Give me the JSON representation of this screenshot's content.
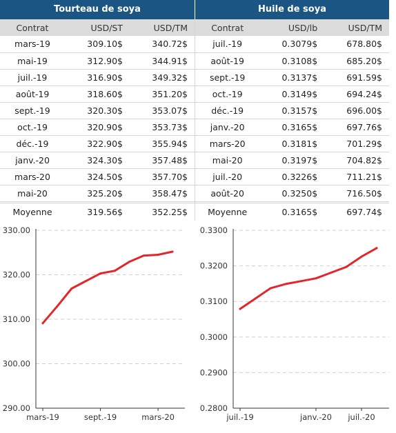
{
  "tables": [
    {
      "title": "Tourteau de soya",
      "columns": [
        "Contrat",
        "USD/ST",
        "USD/TM"
      ],
      "rows": [
        [
          "mars-19",
          "309.10$",
          "340.72$"
        ],
        [
          "mai-19",
          "312.90$",
          "344.91$"
        ],
        [
          "juil.-19",
          "316.90$",
          "349.32$"
        ],
        [
          "août-19",
          "318.60$",
          "351.20$"
        ],
        [
          "sept.-19",
          "320.30$",
          "353.07$"
        ],
        [
          "oct.-19",
          "320.90$",
          "353.73$"
        ],
        [
          "déc.-19",
          "322.90$",
          "355.94$"
        ],
        [
          "janv.-20",
          "324.30$",
          "357.48$"
        ],
        [
          "mars-20",
          "324.50$",
          "357.70$"
        ],
        [
          "mai-20",
          "325.20$",
          "358.47$"
        ]
      ],
      "average": [
        "Moyenne",
        "319.56$",
        "352.25$"
      ]
    },
    {
      "title": "Huile de soya",
      "columns": [
        "Contrat",
        "USD/lb",
        "USD/TM"
      ],
      "rows": [
        [
          "juil.-19",
          "0.3079$",
          "678.80$"
        ],
        [
          "août-19",
          "0.3108$",
          "685.20$"
        ],
        [
          "sept.-19",
          "0.3137$",
          "691.59$"
        ],
        [
          "oct.-19",
          "0.3149$",
          "694.24$"
        ],
        [
          "déc.-19",
          "0.3157$",
          "696.00$"
        ],
        [
          "janv.-20",
          "0.3165$",
          "697.76$"
        ],
        [
          "mars-20",
          "0.3181$",
          "701.29$"
        ],
        [
          "mai-20",
          "0.3197$",
          "704.82$"
        ],
        [
          "juil.-20",
          "0.3226$",
          "711.21$"
        ],
        [
          "août-20",
          "0.3250$",
          "716.50$"
        ]
      ],
      "average": [
        "Moyenne",
        "0.3165$",
        "697.74$"
      ]
    }
  ],
  "chart_data": [
    {
      "type": "line",
      "x": [
        "mars-19",
        "mai-19",
        "juil.-19",
        "août-19",
        "sept.-19",
        "oct.-19",
        "déc.-19",
        "janv.-20",
        "mars-20",
        "mai-20"
      ],
      "values": [
        309.1,
        312.9,
        316.9,
        318.6,
        320.3,
        320.9,
        322.9,
        324.3,
        324.5,
        325.2
      ],
      "ylim": [
        290,
        330
      ],
      "yticks": [
        "290.00",
        "300.00",
        "310.00",
        "320.00",
        "330.00"
      ],
      "xticks": [
        "mars-19",
        "sept.-19",
        "mars-20"
      ],
      "color": "#e3262b",
      "grid": true
    },
    {
      "type": "line",
      "x": [
        "juil.-19",
        "août-19",
        "sept.-19",
        "oct.-19",
        "déc.-19",
        "janv.-20",
        "mars-20",
        "mai-20",
        "juil.-20",
        "août-20"
      ],
      "values": [
        0.3079,
        0.3108,
        0.3137,
        0.3149,
        0.3157,
        0.3165,
        0.3181,
        0.3197,
        0.3226,
        0.325
      ],
      "ylim": [
        0.28,
        0.33
      ],
      "yticks": [
        "0.2800",
        "0.2900",
        "0.3000",
        "0.3100",
        "0.3200",
        "0.3300"
      ],
      "xticks": [
        "juil.-19",
        "janv.-20",
        "juil.-20"
      ],
      "color": "#e3262b",
      "grid": true
    }
  ]
}
